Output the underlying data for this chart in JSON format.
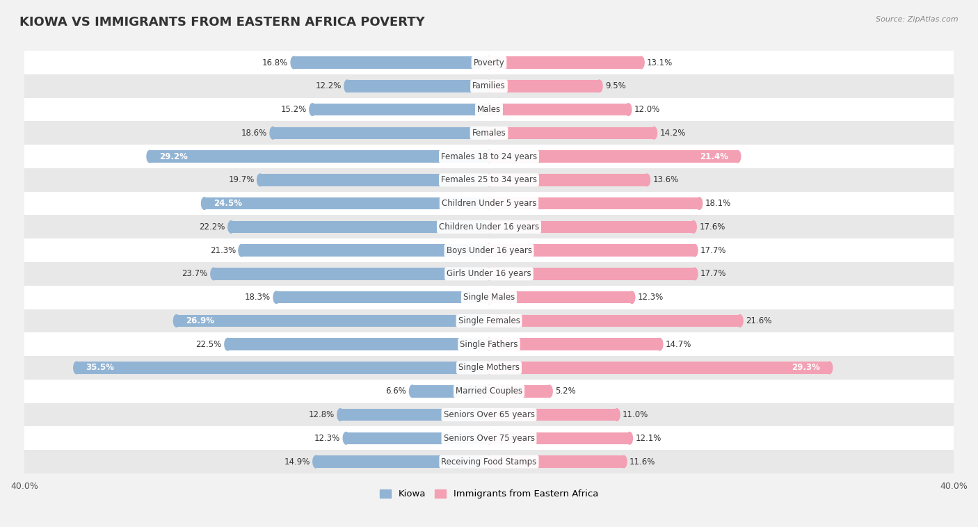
{
  "title": "KIOWA VS IMMIGRANTS FROM EASTERN AFRICA POVERTY",
  "source": "Source: ZipAtlas.com",
  "categories": [
    "Poverty",
    "Families",
    "Males",
    "Females",
    "Females 18 to 24 years",
    "Females 25 to 34 years",
    "Children Under 5 years",
    "Children Under 16 years",
    "Boys Under 16 years",
    "Girls Under 16 years",
    "Single Males",
    "Single Females",
    "Single Fathers",
    "Single Mothers",
    "Married Couples",
    "Seniors Over 65 years",
    "Seniors Over 75 years",
    "Receiving Food Stamps"
  ],
  "kiowa_values": [
    16.8,
    12.2,
    15.2,
    18.6,
    29.2,
    19.7,
    24.5,
    22.2,
    21.3,
    23.7,
    18.3,
    26.9,
    22.5,
    35.5,
    6.6,
    12.8,
    12.3,
    14.9
  ],
  "eastern_africa_values": [
    13.1,
    9.5,
    12.0,
    14.2,
    21.4,
    13.6,
    18.1,
    17.6,
    17.7,
    17.7,
    12.3,
    21.6,
    14.7,
    29.3,
    5.2,
    11.0,
    12.1,
    11.6
  ],
  "kiowa_color": "#92b4d4",
  "eastern_africa_color": "#f4a0b4",
  "background_color": "#f2f2f2",
  "row_alt_color": "#ffffff",
  "row_base_color": "#e8e8e8",
  "bar_height": 0.52,
  "max_val": 40.0,
  "legend_labels": [
    "Kiowa",
    "Immigrants from Eastern Africa"
  ],
  "label_fontsize": 8.5,
  "value_fontsize": 8.5,
  "title_fontsize": 13,
  "highlight_kiowa": [
    4,
    6,
    11,
    13
  ],
  "highlight_eastern": [
    4,
    13
  ]
}
